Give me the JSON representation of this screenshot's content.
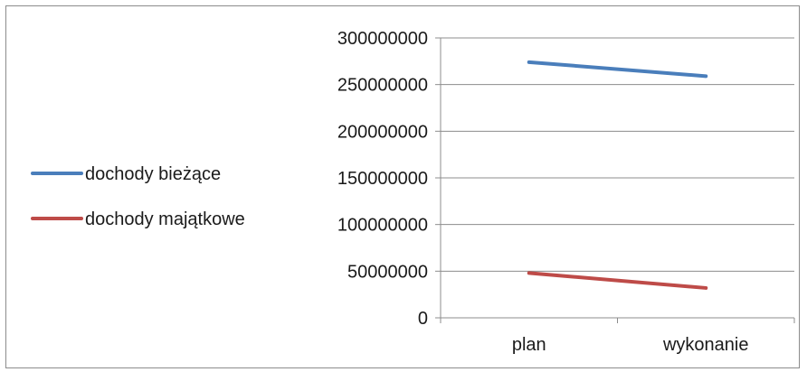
{
  "chart_data": {
    "type": "line",
    "title": "",
    "xlabel": "",
    "ylabel": "",
    "categories": [
      "plan",
      "wykonanie"
    ],
    "ylim": [
      0,
      300000000
    ],
    "yticks": [
      0,
      50000000,
      100000000,
      150000000,
      200000000,
      250000000,
      300000000
    ],
    "ytick_labels": [
      "0",
      "50000000",
      "100000000",
      "150000000",
      "200000000",
      "250000000",
      "300000000"
    ],
    "grid": true,
    "legend_placement": "left",
    "series": [
      {
        "name": "dochody bieżące",
        "color": "#4a7ebb",
        "values": [
          274000000,
          259000000
        ]
      },
      {
        "name": "dochody majątkowe",
        "color": "#be4b48",
        "values": [
          48000000,
          32000000
        ]
      }
    ]
  }
}
